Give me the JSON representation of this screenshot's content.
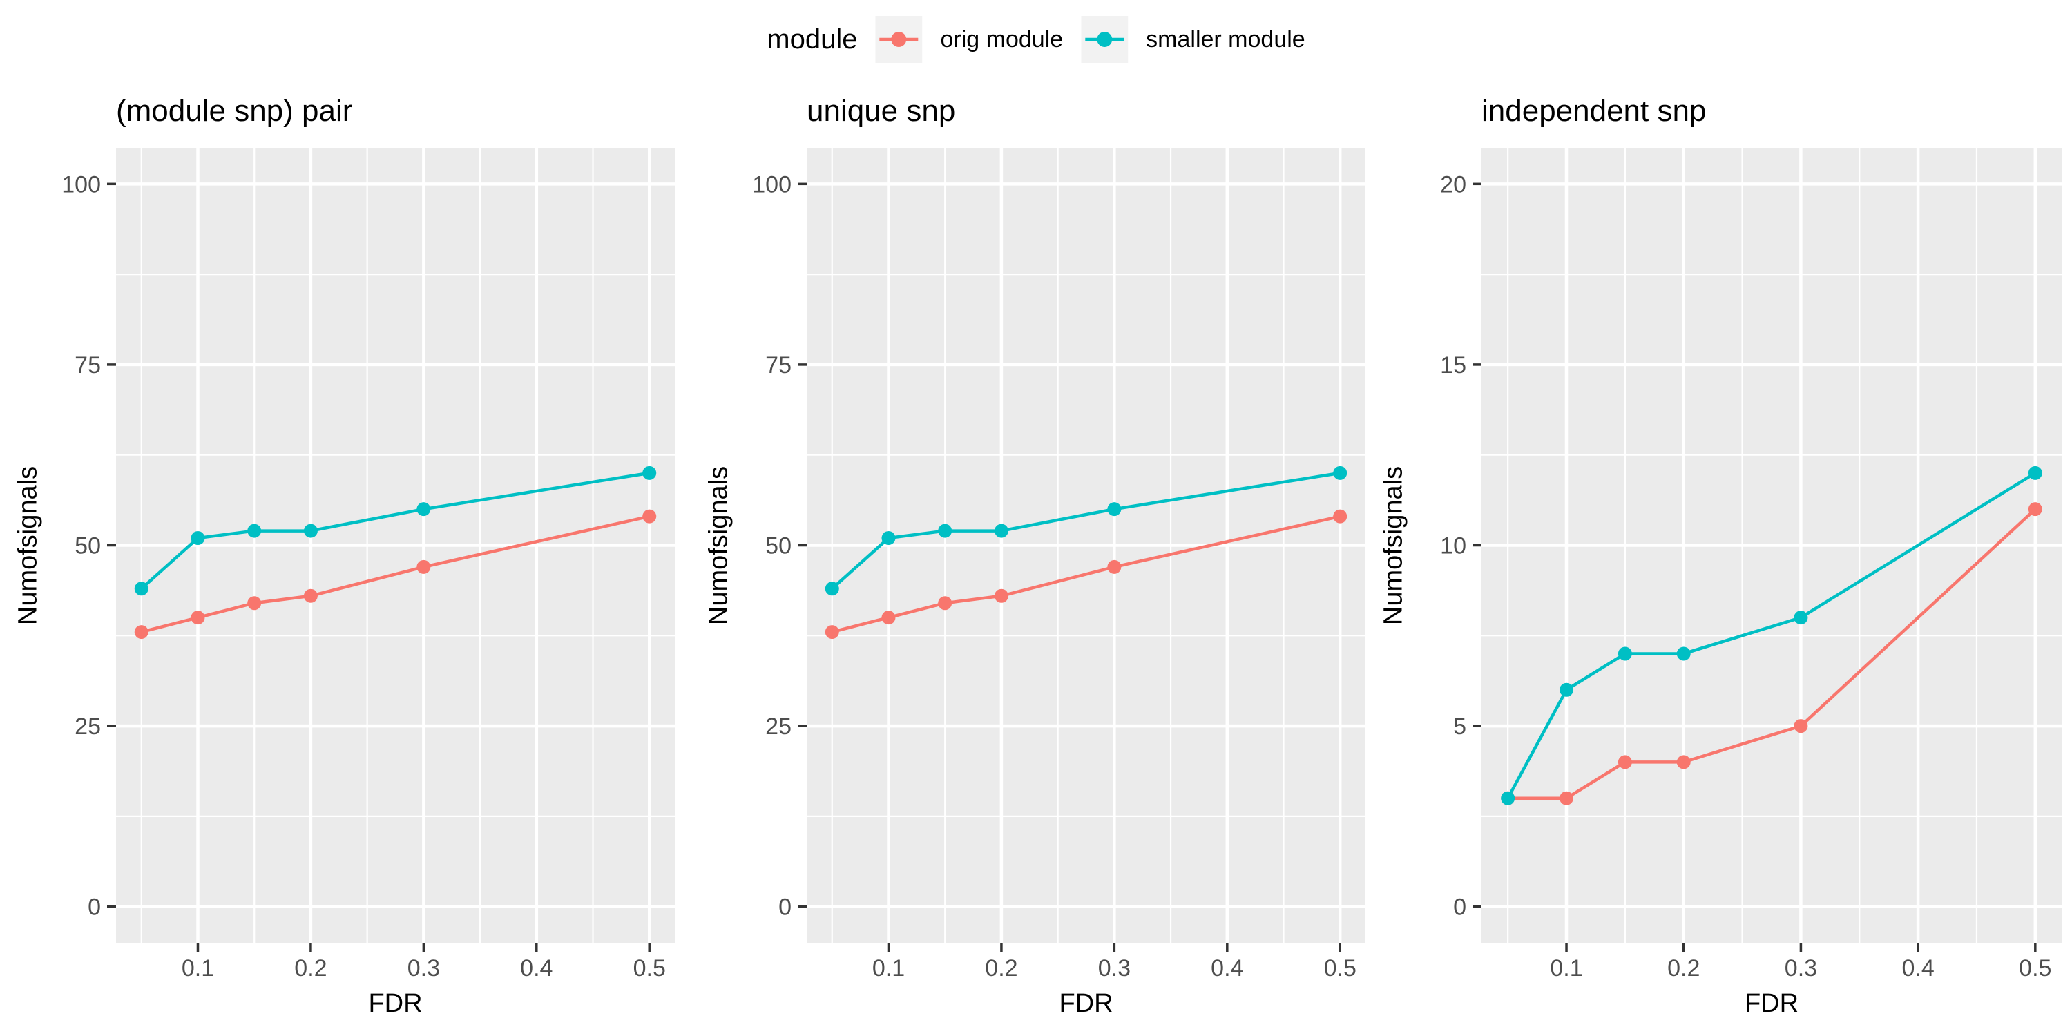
{
  "chart_data": {
    "type": "line",
    "legend": {
      "title": "module",
      "entries": [
        {
          "label": "orig module",
          "color": "#F8766D"
        },
        {
          "label": "smaller module",
          "color": "#00BFC4"
        }
      ]
    },
    "xlabel": "FDR",
    "ylabel": "Numofsignals",
    "x": [
      0.05,
      0.1,
      0.15,
      0.2,
      0.3,
      0.5
    ],
    "xlim": [
      0.0275,
      0.5225
    ],
    "x_ticks": [
      0.1,
      0.2,
      0.3,
      0.4,
      0.5
    ],
    "x_tick_labels": [
      "0.1",
      "0.2",
      "0.3",
      "0.4",
      "0.5"
    ],
    "x_minor": [
      0.05,
      0.15,
      0.25,
      0.35,
      0.45
    ],
    "grid": "on",
    "legend_position": "top",
    "panels": [
      {
        "title": "(module snp) pair",
        "ylim": [
          -5,
          105
        ],
        "y_ticks": [
          0,
          25,
          50,
          75,
          100
        ],
        "y_tick_labels": [
          "0",
          "25",
          "50",
          "75",
          "100"
        ],
        "y_minor": [
          12.5,
          37.5,
          62.5,
          87.5
        ],
        "series": [
          {
            "name": "orig module",
            "values": [
              38,
              40,
              42,
              43,
              47,
              54
            ]
          },
          {
            "name": "smaller module",
            "values": [
              44,
              51,
              52,
              52,
              55,
              60
            ]
          }
        ]
      },
      {
        "title": "unique snp",
        "ylim": [
          -5,
          105
        ],
        "y_ticks": [
          0,
          25,
          50,
          75,
          100
        ],
        "y_tick_labels": [
          "0",
          "25",
          "50",
          "75",
          "100"
        ],
        "y_minor": [
          12.5,
          37.5,
          62.5,
          87.5
        ],
        "series": [
          {
            "name": "orig module",
            "values": [
              38,
              40,
              42,
              43,
              47,
              54
            ]
          },
          {
            "name": "smaller module",
            "values": [
              44,
              51,
              52,
              52,
              55,
              60
            ]
          }
        ]
      },
      {
        "title": "independent snp",
        "ylim": [
          -1,
          21
        ],
        "y_ticks": [
          0,
          5,
          10,
          15,
          20
        ],
        "y_tick_labels": [
          "0",
          "5",
          "10",
          "15",
          "20"
        ],
        "y_minor": [
          2.5,
          7.5,
          12.5,
          17.5
        ],
        "series": [
          {
            "name": "orig module",
            "values": [
              3,
              3,
              4,
              4,
              5,
              11
            ]
          },
          {
            "name": "smaller module",
            "values": [
              3,
              6,
              7,
              7,
              8,
              12
            ]
          }
        ]
      }
    ],
    "colors": {
      "orig module": "#F8766D",
      "smaller module": "#00BFC4",
      "panel_bg": "#EBEBEB",
      "gridline": "#FFFFFF",
      "tick_text": "#4D4D4D",
      "tick_mark": "#333333",
      "legend_key_bg": "#F2F2F2"
    }
  }
}
